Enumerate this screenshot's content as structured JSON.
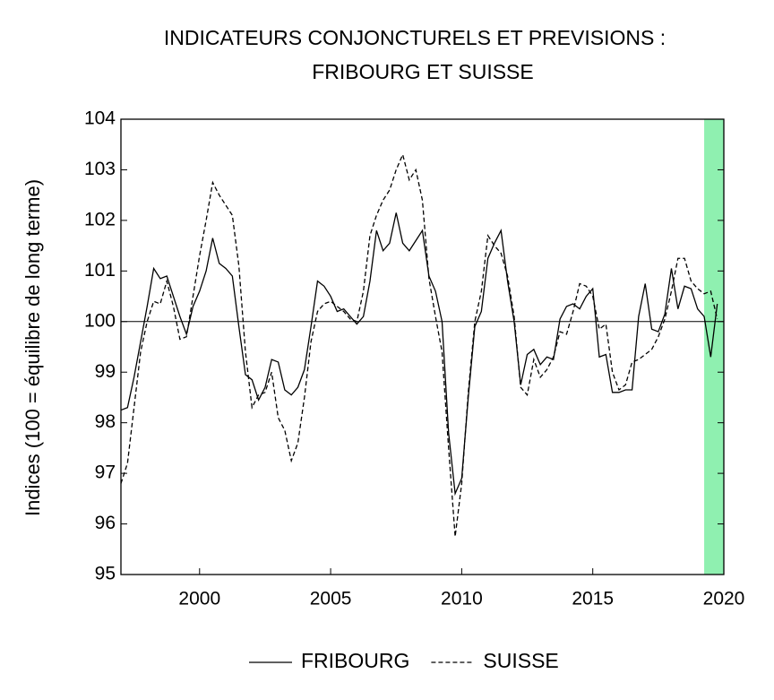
{
  "chart_data": {
    "type": "line",
    "title": [
      "INDICATEURS CONJONCTURELS ET PREVISIONS :",
      "FRIBOURG ET SUISSE"
    ],
    "y_label": "Indices (100 = équilibre de long terme)",
    "xlim": [
      1997,
      2020
    ],
    "xticks": [
      2000,
      2005,
      2010,
      2015,
      2020
    ],
    "ylim": [
      95,
      104
    ],
    "yticks": [
      95,
      96,
      97,
      98,
      99,
      100,
      101,
      102,
      103,
      104
    ],
    "reference_line": 100,
    "shaded_x": [
      2019.25,
      2020
    ],
    "shade_color": "#8ff0b0",
    "legend": "bottom",
    "x": [
      1997,
      1997.25,
      1997.5,
      1997.75,
      1998,
      1998.25,
      1998.5,
      1998.75,
      1999,
      1999.25,
      1999.5,
      1999.75,
      2000,
      2000.25,
      2000.5,
      2000.75,
      2001,
      2001.25,
      2001.5,
      2001.75,
      2002,
      2002.25,
      2002.5,
      2002.75,
      2003,
      2003.25,
      2003.5,
      2003.75,
      2004,
      2004.25,
      2004.5,
      2004.75,
      2005,
      2005.25,
      2005.5,
      2005.75,
      2006,
      2006.25,
      2006.5,
      2006.75,
      2007,
      2007.25,
      2007.5,
      2007.75,
      2008,
      2008.25,
      2008.5,
      2008.75,
      2009,
      2009.25,
      2009.5,
      2009.75,
      2010,
      2010.25,
      2010.5,
      2010.75,
      2011,
      2011.25,
      2011.5,
      2011.75,
      2012,
      2012.25,
      2012.5,
      2012.75,
      2013,
      2013.25,
      2013.5,
      2013.75,
      2014,
      2014.25,
      2014.5,
      2014.75,
      2015,
      2015.25,
      2015.5,
      2015.75,
      2016,
      2016.25,
      2016.5,
      2016.75,
      2017,
      2017.25,
      2017.5,
      2017.75,
      2018,
      2018.25,
      2018.5,
      2018.75,
      2019,
      2019.25,
      2019.5,
      2019.75
    ],
    "series": [
      {
        "name": "FRIBOURG",
        "color": "#000000",
        "dash": "solid",
        "values": [
          98.25,
          98.3,
          98.9,
          99.6,
          100.3,
          101.05,
          100.85,
          100.9,
          100.5,
          100.1,
          99.75,
          100.3,
          100.6,
          101.0,
          101.65,
          101.15,
          101.05,
          100.9,
          99.9,
          98.95,
          98.85,
          98.45,
          98.7,
          99.25,
          99.2,
          98.65,
          98.55,
          98.7,
          99.05,
          99.9,
          100.8,
          100.7,
          100.5,
          100.2,
          100.25,
          100.1,
          99.95,
          100.1,
          100.8,
          101.8,
          101.4,
          101.55,
          102.15,
          101.55,
          101.4,
          101.6,
          101.8,
          100.9,
          100.6,
          100.0,
          97.8,
          96.6,
          96.9,
          98.5,
          99.9,
          100.2,
          101.25,
          101.55,
          101.8,
          100.8,
          100.0,
          98.75,
          99.35,
          99.45,
          99.15,
          99.3,
          99.25,
          100.05,
          100.3,
          100.35,
          100.25,
          100.5,
          100.65,
          99.3,
          99.35,
          98.6,
          98.6,
          98.65,
          98.65,
          100.1,
          100.75,
          99.85,
          99.8,
          100.15,
          101.05,
          100.25,
          100.7,
          100.65,
          100.25,
          100.1,
          99.3,
          100.35
        ]
      },
      {
        "name": "SUISSE",
        "color": "#000000",
        "dash": "dashed",
        "values": [
          96.8,
          97.2,
          98.3,
          99.4,
          100.0,
          100.4,
          100.35,
          100.8,
          100.3,
          99.65,
          99.7,
          100.5,
          101.3,
          102.0,
          102.75,
          102.5,
          102.3,
          102.1,
          101.1,
          99.4,
          98.3,
          98.55,
          98.6,
          99.0,
          98.1,
          97.85,
          97.25,
          97.6,
          98.5,
          99.6,
          100.2,
          100.35,
          100.4,
          100.3,
          100.2,
          100.05,
          100.0,
          100.6,
          101.7,
          102.1,
          102.4,
          102.6,
          103.0,
          103.3,
          102.8,
          103.0,
          102.4,
          100.85,
          100.1,
          99.4,
          97.5,
          95.75,
          96.8,
          98.6,
          100.0,
          100.6,
          101.7,
          101.5,
          101.35,
          100.9,
          100.1,
          98.7,
          98.55,
          99.25,
          98.9,
          99.05,
          99.3,
          99.8,
          99.75,
          100.2,
          100.75,
          100.7,
          100.5,
          99.85,
          99.95,
          99.0,
          98.65,
          98.75,
          99.2,
          99.25,
          99.35,
          99.45,
          99.7,
          100.05,
          100.6,
          101.25,
          101.25,
          100.8,
          100.65,
          100.55,
          100.6,
          100.05
        ]
      }
    ]
  }
}
